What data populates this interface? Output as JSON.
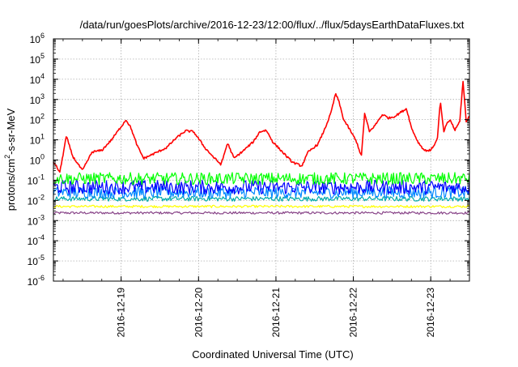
{
  "chart_data": {
    "type": "line",
    "title": "/data/run/goesPlots/archive/2016-12-23/12:00/flux/../flux/5daysEarthDataFluxes.txt",
    "xlabel": "Coordinated Universal Time (UTC)",
    "ylabel": {
      "base": "protons/cm",
      "sup": "2",
      "rest": "-s-sr-MeV"
    },
    "yscale": "log",
    "ylim": [
      1e-06,
      1000000.0
    ],
    "xlim": [
      "2016-12-18T03:00",
      "2016-12-23T12:00"
    ],
    "grid": true,
    "legend": "none",
    "x_ticks": [
      {
        "label": "2016-12-19",
        "date": "2016-12-19T00:00"
      },
      {
        "label": "2016-12-20",
        "date": "2016-12-20T00:00"
      },
      {
        "label": "2016-12-21",
        "date": "2016-12-21T00:00"
      },
      {
        "label": "2016-12-22",
        "date": "2016-12-22T00:00"
      },
      {
        "label": "2016-12-23",
        "date": "2016-12-23T00:00"
      }
    ],
    "y_ticks": [
      {
        "base": "10",
        "exp": "-6",
        "value": 1e-06
      },
      {
        "base": "10",
        "exp": "-5",
        "value": 1e-05
      },
      {
        "base": "10",
        "exp": "-4",
        "value": 0.0001
      },
      {
        "base": "10",
        "exp": "-3",
        "value": 0.001
      },
      {
        "base": "10",
        "exp": "-2",
        "value": 0.01
      },
      {
        "base": "10",
        "exp": "-1",
        "value": 0.1
      },
      {
        "base": "10",
        "exp": "0",
        "value": 1
      },
      {
        "base": "10",
        "exp": "1",
        "value": 10
      },
      {
        "base": "10",
        "exp": "2",
        "value": 100
      },
      {
        "base": "10",
        "exp": "3",
        "value": 1000
      },
      {
        "base": "10",
        "exp": "4",
        "value": 10000
      },
      {
        "base": "10",
        "exp": "5",
        "value": 100000
      },
      {
        "base": "10",
        "exp": "6",
        "value": 1000000
      }
    ],
    "series": [
      {
        "color": "#ff0000",
        "noise_log10": 0.05,
        "points": [
          [
            "2016-12-18T03:00",
            0.8
          ],
          [
            "2016-12-18T05:00",
            0.25
          ],
          [
            "2016-12-18T07:00",
            15
          ],
          [
            "2016-12-18T09:00",
            1.5
          ],
          [
            "2016-12-18T12:00",
            0.3
          ],
          [
            "2016-12-18T15:00",
            2.5
          ],
          [
            "2016-12-18T18:00",
            3
          ],
          [
            "2016-12-18T21:00",
            10
          ],
          [
            "2016-12-19T00:00",
            45
          ],
          [
            "2016-12-19T01:30",
            100
          ],
          [
            "2016-12-19T03:00",
            40
          ],
          [
            "2016-12-19T05:00",
            5
          ],
          [
            "2016-12-19T07:00",
            1.2
          ],
          [
            "2016-12-19T10:00",
            2
          ],
          [
            "2016-12-19T14:00",
            4
          ],
          [
            "2016-12-19T17:00",
            12
          ],
          [
            "2016-12-19T20:00",
            28
          ],
          [
            "2016-12-19T22:30",
            25
          ],
          [
            "2016-12-20T02:00",
            4
          ],
          [
            "2016-12-20T05:00",
            1.2
          ],
          [
            "2016-12-20T07:00",
            0.6
          ],
          [
            "2016-12-20T09:00",
            7
          ],
          [
            "2016-12-20T11:00",
            1.2
          ],
          [
            "2016-12-20T14:00",
            3
          ],
          [
            "2016-12-20T17:00",
            8
          ],
          [
            "2016-12-20T19:00",
            25
          ],
          [
            "2016-12-20T21:00",
            30
          ],
          [
            "2016-12-20T23:00",
            8
          ],
          [
            "2016-12-21T02:00",
            2.5
          ],
          [
            "2016-12-21T05:00",
            0.8
          ],
          [
            "2016-12-21T08:00",
            0.5
          ],
          [
            "2016-12-21T10:00",
            2.5
          ],
          [
            "2016-12-21T13:00",
            6
          ],
          [
            "2016-12-21T15:00",
            30
          ],
          [
            "2016-12-21T17:00",
            200
          ],
          [
            "2016-12-21T18:30",
            2000
          ],
          [
            "2016-12-21T19:30",
            800
          ],
          [
            "2016-12-21T21:00",
            100
          ],
          [
            "2016-12-21T23:00",
            30
          ],
          [
            "2016-12-22T01:00",
            8
          ],
          [
            "2016-12-22T02:30",
            1.5
          ],
          [
            "2016-12-22T03:30",
            200
          ],
          [
            "2016-12-22T05:00",
            25
          ],
          [
            "2016-12-22T07:00",
            60
          ],
          [
            "2016-12-22T09:00",
            180
          ],
          [
            "2016-12-22T11:00",
            120
          ],
          [
            "2016-12-22T13:00",
            150
          ],
          [
            "2016-12-22T15:00",
            250
          ],
          [
            "2016-12-22T16:30",
            350
          ],
          [
            "2016-12-22T18:00",
            40
          ],
          [
            "2016-12-22T20:00",
            8
          ],
          [
            "2016-12-22T22:00",
            3
          ],
          [
            "2016-12-23T00:00",
            3
          ],
          [
            "2016-12-23T02:00",
            10
          ],
          [
            "2016-12-23T03:00",
            800
          ],
          [
            "2016-12-23T04:00",
            25
          ],
          [
            "2016-12-23T05:00",
            60
          ],
          [
            "2016-12-23T06:00",
            100
          ],
          [
            "2016-12-23T07:30",
            30
          ],
          [
            "2016-12-23T09:00",
            80
          ],
          [
            "2016-12-23T10:00",
            8000
          ],
          [
            "2016-12-23T11:00",
            80
          ],
          [
            "2016-12-23T12:00",
            150
          ]
        ]
      },
      {
        "color": "#00ff00",
        "center": 0.12,
        "spread_log10": 0.3
      },
      {
        "color": "#0000ff",
        "center": 0.045,
        "spread_log10": 0.35
      },
      {
        "color": "#0088ff",
        "center": 0.025,
        "spread_log10": 0.3
      },
      {
        "color": "#00aaaa",
        "center": 0.012,
        "spread_log10": 0.12
      },
      {
        "color": "#ffff00",
        "center": 0.005,
        "spread_log10": 0.06
      },
      {
        "color": "#884488",
        "center": 0.0024,
        "spread_log10": 0.06
      }
    ]
  }
}
